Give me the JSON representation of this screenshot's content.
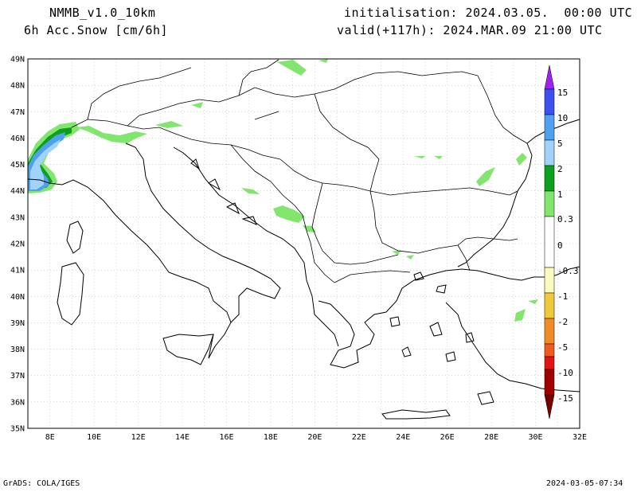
{
  "header": {
    "model": "NMMB_v1.0_10km",
    "field": "6h Acc.Snow [cm/6h]",
    "initialisation": "initialisation: 2024.03.05.  00:00 UTC",
    "valid": "valid(+117h): 2024.MAR.09 21:00 UTC"
  },
  "map": {
    "lat_labels": [
      "49N",
      "48N",
      "47N",
      "46N",
      "45N",
      "44N",
      "43N",
      "42N",
      "41N",
      "40N",
      "39N",
      "38N",
      "37N",
      "36N",
      "35N"
    ],
    "lon_labels": [
      "8E",
      "10E",
      "12E",
      "14E",
      "16E",
      "18E",
      "20E",
      "22E",
      "24E",
      "26E",
      "28E",
      "30E",
      "32E"
    ],
    "lon_range": [
      7,
      32
    ],
    "lat_range": [
      35,
      49
    ]
  },
  "colorbar": {
    "labels": [
      "15",
      "10",
      "5",
      "2",
      "1",
      "0.3",
      "0",
      "-0.3",
      "-1",
      "-2",
      "-5",
      "-10",
      "-15"
    ],
    "colors": {
      "purple": "#a020f0",
      "blue": "#3c50f0",
      "mid_blue": "#50a0f0",
      "light_blue": "#a0d2fa",
      "dark_green": "#0ca01e",
      "light_green": "#82e66e",
      "white": "#ffffff",
      "cream": "#fafabe",
      "yellow": "#f0c83c",
      "orange": "#f08c28",
      "orange_red": "#f05a1e",
      "red": "#e11414",
      "dark_red": "#a00000",
      "maroon": "#780000"
    }
  },
  "footer": {
    "left": "GrADS: COLA/IGES",
    "right": "2024-03-05-07:34"
  }
}
